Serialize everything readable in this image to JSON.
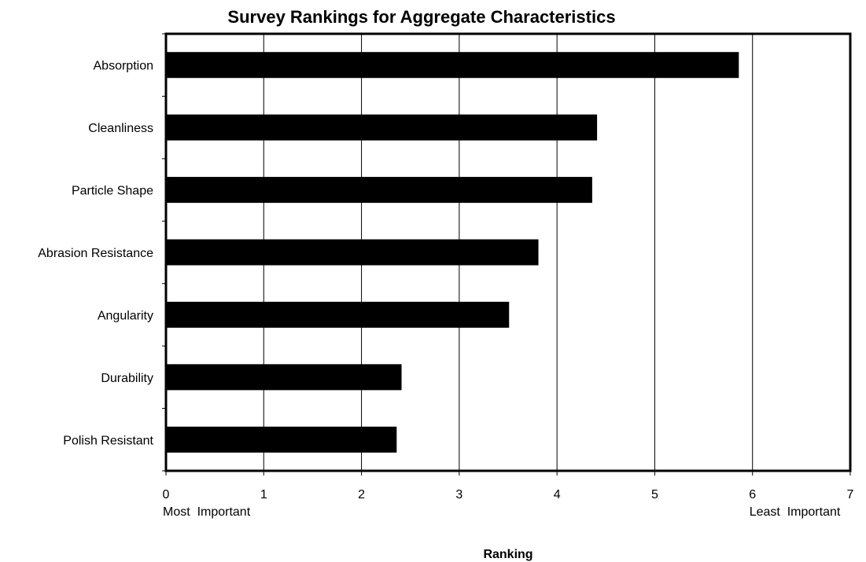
{
  "chart_data": {
    "type": "bar",
    "orientation": "horizontal",
    "title": "Survey Rankings for Aggregate Characteristics",
    "xlabel": "Ranking",
    "ylabel": "",
    "xlim": [
      0,
      7
    ],
    "xticks": [
      0,
      1,
      2,
      3,
      4,
      5,
      6,
      7
    ],
    "xtick_sublabels": [
      {
        "at": 0,
        "text": "Most  Important",
        "align": "start"
      },
      {
        "at": 6,
        "text": "Least  Important",
        "align": "start"
      }
    ],
    "grid": "vertical",
    "categories": [
      "Absorption",
      "Cleanliness",
      "Particle Shape",
      "Abrasion Resistance",
      "Angularity",
      "Durability",
      "Polish Resistant"
    ],
    "values": [
      5.86,
      4.41,
      4.36,
      3.81,
      3.51,
      2.41,
      2.36
    ],
    "bar_color": "#000000",
    "legend": "none"
  }
}
